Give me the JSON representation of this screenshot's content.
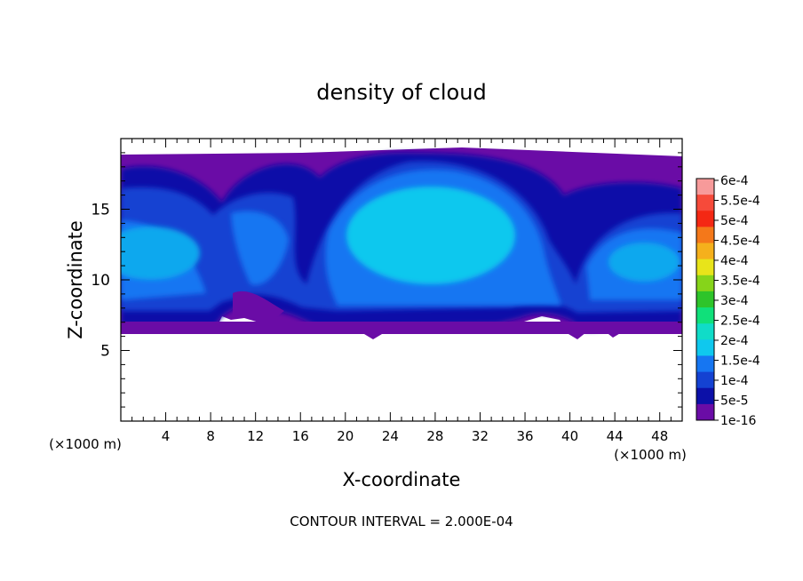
{
  "chart_data": {
    "type": "heatmap",
    "title": "density of cloud",
    "xlabel": "X-coordinate",
    "ylabel": "Z-coordinate",
    "x_unit_left": "(×1000 m)",
    "x_unit_right": "(×1000 m)",
    "xlim": [
      0,
      50
    ],
    "ylim": [
      0,
      20
    ],
    "x_ticks": [
      "4",
      "8",
      "12",
      "16",
      "20",
      "24",
      "28",
      "32",
      "36",
      "40",
      "44",
      "48"
    ],
    "x_tick_values": [
      4,
      8,
      12,
      16,
      20,
      24,
      28,
      32,
      36,
      40,
      44,
      48
    ],
    "y_ticks": [
      "5",
      "10",
      "15"
    ],
    "y_tick_values": [
      5,
      10,
      15
    ],
    "footer": "CONTOUR INTERVAL = 2.000E-04",
    "colorbar": {
      "labels": [
        "6e-4",
        "5.5e-4",
        "5e-4",
        "4.5e-4",
        "4e-4",
        "3.5e-4",
        "3e-4",
        "2.5e-4",
        "2e-4",
        "1.5e-4",
        "1e-4",
        "5e-5",
        "1e-16"
      ],
      "colors": [
        "#f79a9a",
        "#f64a3a",
        "#f42814",
        "#f4781a",
        "#f5b01c",
        "#e8e41a",
        "#86d41a",
        "#2ec42a",
        "#10e07a",
        "#10dcc8",
        "#0fc8ee",
        "#1676f2",
        "#1442d2",
        "#0c10a8",
        "#6a0ca6"
      ]
    },
    "cloud_base_z": 6.2,
    "cloud_top_z": 18.8,
    "cores": [
      {
        "x": 3.5,
        "z": 11.5,
        "value": 0.00015
      },
      {
        "x": 13.5,
        "z": 13.0,
        "value": 0.00012
      },
      {
        "x": 26.5,
        "z": 13.5,
        "value": 0.00016
      },
      {
        "x": 45.0,
        "z": 11.0,
        "value": 0.00014
      }
    ]
  }
}
